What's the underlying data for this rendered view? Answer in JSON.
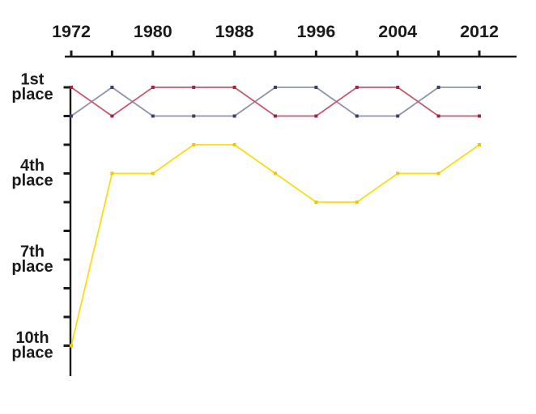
{
  "chart_data": {
    "type": "line",
    "subtype": "rank-bump-chart",
    "title": "",
    "xlabel": "",
    "ylabel": "",
    "x": [
      1972,
      1976,
      1980,
      1984,
      1988,
      1992,
      1996,
      2000,
      2004,
      2008,
      2012
    ],
    "x_axis": {
      "tick_years": [
        1972,
        1976,
        1980,
        1984,
        1988,
        1992,
        1996,
        2000,
        2004,
        2008,
        2012
      ],
      "labeled_every_other_tick": true,
      "shown_labels": [
        "1972",
        "1980",
        "1988",
        "1996",
        "2004",
        "2012"
      ],
      "position": "top"
    },
    "y_axis": {
      "inverted": true,
      "range": [
        1,
        10
      ],
      "tick_ranks": [
        1,
        2,
        3,
        4,
        5,
        6,
        7,
        8,
        9,
        10
      ],
      "labeled_ranks": [
        {
          "rank": 1,
          "label": "1st place"
        },
        {
          "rank": 4,
          "label": "4th place"
        },
        {
          "rank": 7,
          "label": "7th place"
        },
        {
          "rank": 10,
          "label": "10th place"
        }
      ]
    },
    "series": [
      {
        "name": "blue-series",
        "line_color": "#8E92AE",
        "marker_color": "#3A3F68",
        "values": [
          2,
          1,
          2,
          2,
          2,
          1,
          1,
          2,
          2,
          1,
          1
        ]
      },
      {
        "name": "red-series",
        "line_color": "#C7596F",
        "marker_color": "#A02342",
        "values": [
          1,
          2,
          1,
          1,
          1,
          2,
          2,
          1,
          1,
          2,
          2
        ]
      },
      {
        "name": "yellow-series",
        "line_color": "#FBDC12",
        "marker_color": "#F2C40D",
        "values": [
          10,
          4,
          4,
          3,
          3,
          4,
          5,
          5,
          4,
          4,
          3
        ]
      }
    ],
    "legend": "none",
    "grid": false,
    "axis_color": "#1a1a1a",
    "background_color": "#ffffff"
  }
}
